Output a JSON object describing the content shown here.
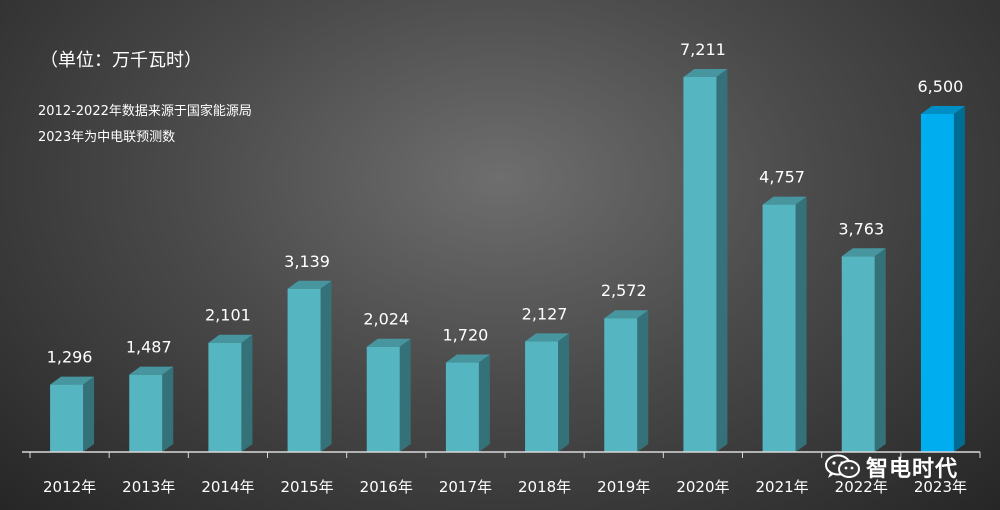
{
  "notes": {
    "unit": "（单位：万千瓦时）",
    "source_line1": "2012-2022年数据来源于国家能源局",
    "source_line2": "2023年为中电联预测数"
  },
  "watermark": {
    "text": "智电时代",
    "icon": "wechat-icon"
  },
  "colors": {
    "bar": "#55b6c2",
    "bar_highlight": "#00aeef",
    "axis": "#d9d9d9"
  },
  "chart_data": {
    "type": "bar",
    "title": "",
    "xlabel": "",
    "ylabel": "",
    "categories": [
      "2012年",
      "2013年",
      "2014年",
      "2015年",
      "2016年",
      "2017年",
      "2018年",
      "2019年",
      "2020年",
      "2021年",
      "2022年",
      "2023年"
    ],
    "values": [
      1296,
      1487,
      2101,
      3139,
      2024,
      1720,
      2127,
      2572,
      7211,
      4757,
      3763,
      6500
    ],
    "value_labels": [
      "1,296",
      "1,487",
      "2,101",
      "3,139",
      "2,024",
      "1,720",
      "2,127",
      "2,572",
      "7,211",
      "4,757",
      "3,763",
      "6,500"
    ],
    "highlight": "2023年",
    "ylim": [
      0,
      7300
    ],
    "grid": false,
    "legend": "none"
  }
}
